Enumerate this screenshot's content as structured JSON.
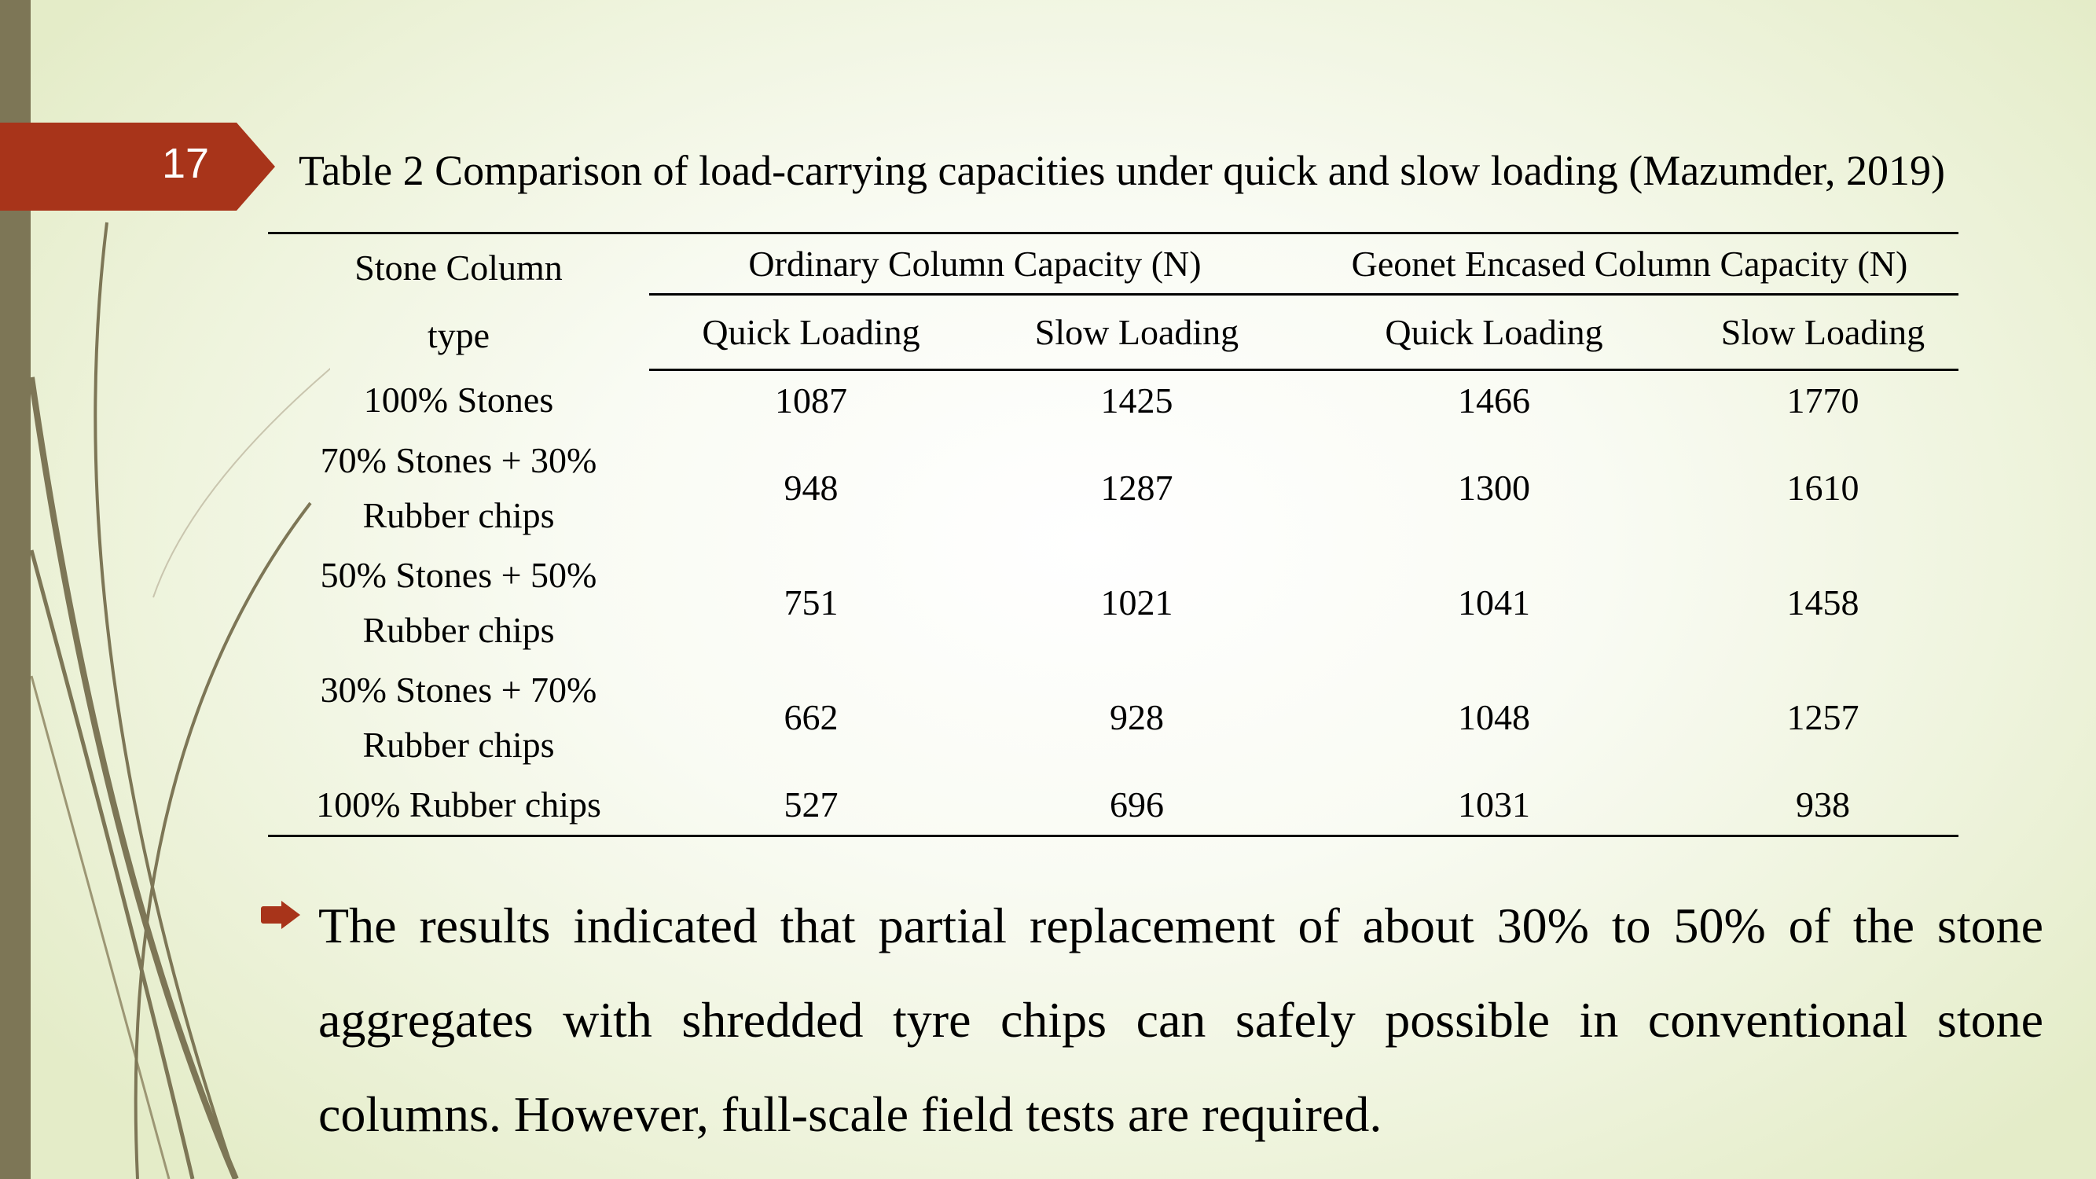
{
  "slide": {
    "number": "17"
  },
  "table": {
    "caption": "Table 2 Comparison of load-carrying capacities under quick and slow loading (Mazumder, 2019)",
    "row_header": {
      "line1": "Stone Column",
      "line2": "type"
    },
    "groups": [
      "Ordinary Column Capacity (N)",
      "Geonet Encased Column Capacity (N)"
    ],
    "subheaders": [
      "Quick Loading",
      "Slow Loading",
      "Quick Loading",
      "Slow Loading"
    ],
    "rows": [
      {
        "type": "100% Stones",
        "values": [
          "1087",
          "1425",
          "1466",
          "1770"
        ]
      },
      {
        "type": "70% Stones + 30% Rubber chips",
        "values": [
          "948",
          "1287",
          "1300",
          "1610"
        ]
      },
      {
        "type": "50% Stones + 50% Rubber chips",
        "values": [
          "751",
          "1021",
          "1041",
          "1458"
        ]
      },
      {
        "type": "30% Stones + 70% Rubber chips",
        "values": [
          "662",
          "928",
          "1048",
          "1257"
        ]
      },
      {
        "type": "100% Rubber chips",
        "values": [
          "527",
          "696",
          "1031",
          "938"
        ]
      }
    ]
  },
  "bullet": {
    "icon": "arrow-right-icon",
    "text": "The results indicated that partial replacement of about 30% to 50% of the stone aggregates with shredded tyre chips can safely possible in conventional stone columns. However, full-scale field tests are required."
  },
  "colors": {
    "accent": "#a8341a",
    "side_bar": "#7d7656",
    "background": "#eff4de"
  }
}
